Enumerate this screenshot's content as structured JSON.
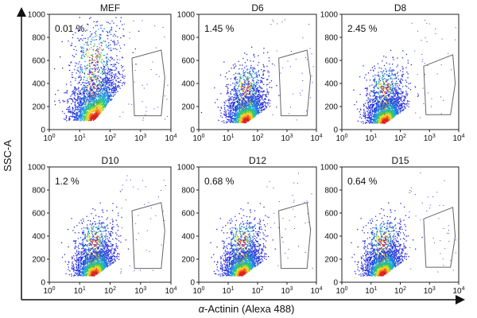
{
  "figure": {
    "ylabel": "SSC-A",
    "xlabel_greek": "α",
    "xlabel_rest": "-Actinin (Alexa 488)"
  },
  "chart_data": [
    {
      "type": "scatter",
      "title": "MEF",
      "annotation": "0.01 %",
      "gate_percent": 0.01,
      "xscale": "log",
      "xlim": [
        1,
        10000
      ],
      "ylim": [
        0,
        1000
      ],
      "xticks": [
        "10",
        "10",
        "10",
        "10",
        "10"
      ],
      "xtick_exponents": [
        "0",
        "1",
        "2",
        "3",
        "4"
      ],
      "yticks": [
        "0",
        "200",
        "400",
        "600",
        "800",
        "1000"
      ],
      "density_center": {
        "x": 30,
        "y": 170
      },
      "gate": "polygon",
      "grid": false
    },
    {
      "type": "scatter",
      "title": "D6",
      "annotation": "1.45 %",
      "gate_percent": 1.45,
      "xscale": "log",
      "xlim": [
        1,
        10000
      ],
      "ylim": [
        0,
        1000
      ],
      "xticks": [
        "10",
        "10",
        "10",
        "10",
        "10"
      ],
      "xtick_exponents": [
        "0",
        "1",
        "2",
        "3",
        "4"
      ],
      "yticks": [
        "0",
        "200",
        "400",
        "600",
        "800",
        "1000"
      ],
      "density_center": {
        "x": 40,
        "y": 130
      },
      "gate": "polygon",
      "grid": false
    },
    {
      "type": "scatter",
      "title": "D8",
      "annotation": "2.45 %",
      "gate_percent": 2.45,
      "xscale": "log",
      "xlim": [
        1,
        10000
      ],
      "ylim": [
        0,
        1000
      ],
      "xticks": [
        "10",
        "10",
        "10",
        "10",
        "10"
      ],
      "xtick_exponents": [
        "0",
        "1",
        "2",
        "3",
        "4"
      ],
      "yticks": [
        "0",
        "200",
        "400",
        "600",
        "800",
        "1000"
      ],
      "density_center": {
        "x": 30,
        "y": 120
      },
      "gate": "polygon",
      "grid": false
    },
    {
      "type": "scatter",
      "title": "D10",
      "annotation": "1.2 %",
      "gate_percent": 1.2,
      "xscale": "log",
      "xlim": [
        1,
        10000
      ],
      "ylim": [
        0,
        1000
      ],
      "xticks": [
        "10",
        "10",
        "10",
        "10",
        "10"
      ],
      "xtick_exponents": [
        "0",
        "1",
        "2",
        "3",
        "4"
      ],
      "yticks": [
        "0",
        "200",
        "400",
        "600",
        "800",
        "1000"
      ],
      "density_center": {
        "x": 30,
        "y": 120
      },
      "gate": "polygon",
      "grid": false
    },
    {
      "type": "scatter",
      "title": "D12",
      "annotation": "0.68 %",
      "gate_percent": 0.68,
      "xscale": "log",
      "xlim": [
        1,
        10000
      ],
      "ylim": [
        0,
        1000
      ],
      "xticks": [
        "10",
        "10",
        "10",
        "10",
        "10"
      ],
      "xtick_exponents": [
        "0",
        "1",
        "2",
        "3",
        "4"
      ],
      "yticks": [
        "0",
        "200",
        "400",
        "600",
        "800",
        "1000"
      ],
      "density_center": {
        "x": 30,
        "y": 120
      },
      "gate": "polygon",
      "grid": false
    },
    {
      "type": "scatter",
      "title": "D15",
      "annotation": "0.64 %",
      "gate_percent": 0.64,
      "xscale": "log",
      "xlim": [
        1,
        10000
      ],
      "ylim": [
        0,
        1000
      ],
      "xticks": [
        "10",
        "10",
        "10",
        "10",
        "10"
      ],
      "xtick_exponents": [
        "0",
        "1",
        "2",
        "3",
        "4"
      ],
      "yticks": [
        "0",
        "200",
        "400",
        "600",
        "800",
        "1000"
      ],
      "density_center": {
        "x": 25,
        "y": 120
      },
      "gate": "polygon",
      "grid": false
    }
  ]
}
